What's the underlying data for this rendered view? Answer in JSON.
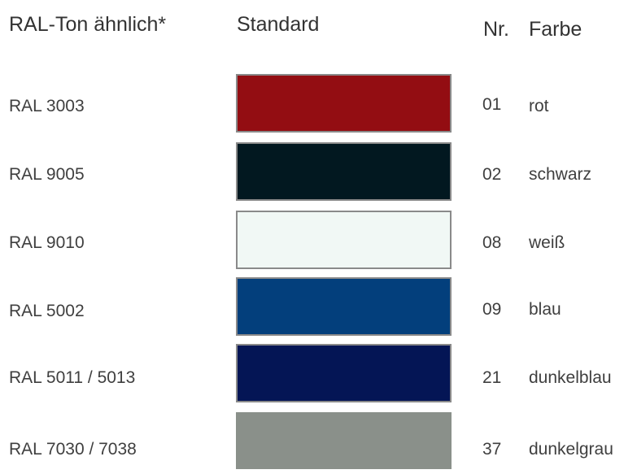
{
  "header": {
    "ral_label": "RAL-Ton ähnlich*",
    "standard_label": "Standard",
    "nr_label": "Nr.",
    "farbe_label": "Farbe"
  },
  "rows": [
    {
      "ral": "RAL 3003",
      "color": "#930d12",
      "nr": "01",
      "farbe": "rot"
    },
    {
      "ral": "RAL 9005",
      "color": "#021820",
      "nr": "02",
      "farbe": "schwarz"
    },
    {
      "ral": "RAL 9010",
      "color": "#f1f8f5",
      "nr": "08",
      "farbe": "weiß"
    },
    {
      "ral": "RAL 5002",
      "color": "#033f7c",
      "nr": "09",
      "farbe": "blau"
    },
    {
      "ral": "RAL 5011 / 5013",
      "color": "#041555",
      "nr": "21",
      "farbe": "dunkelblau"
    },
    {
      "ral": "RAL 7030 / 7038",
      "color": "#8a908a",
      "nr": "37",
      "farbe": "dunkelgrau"
    }
  ]
}
